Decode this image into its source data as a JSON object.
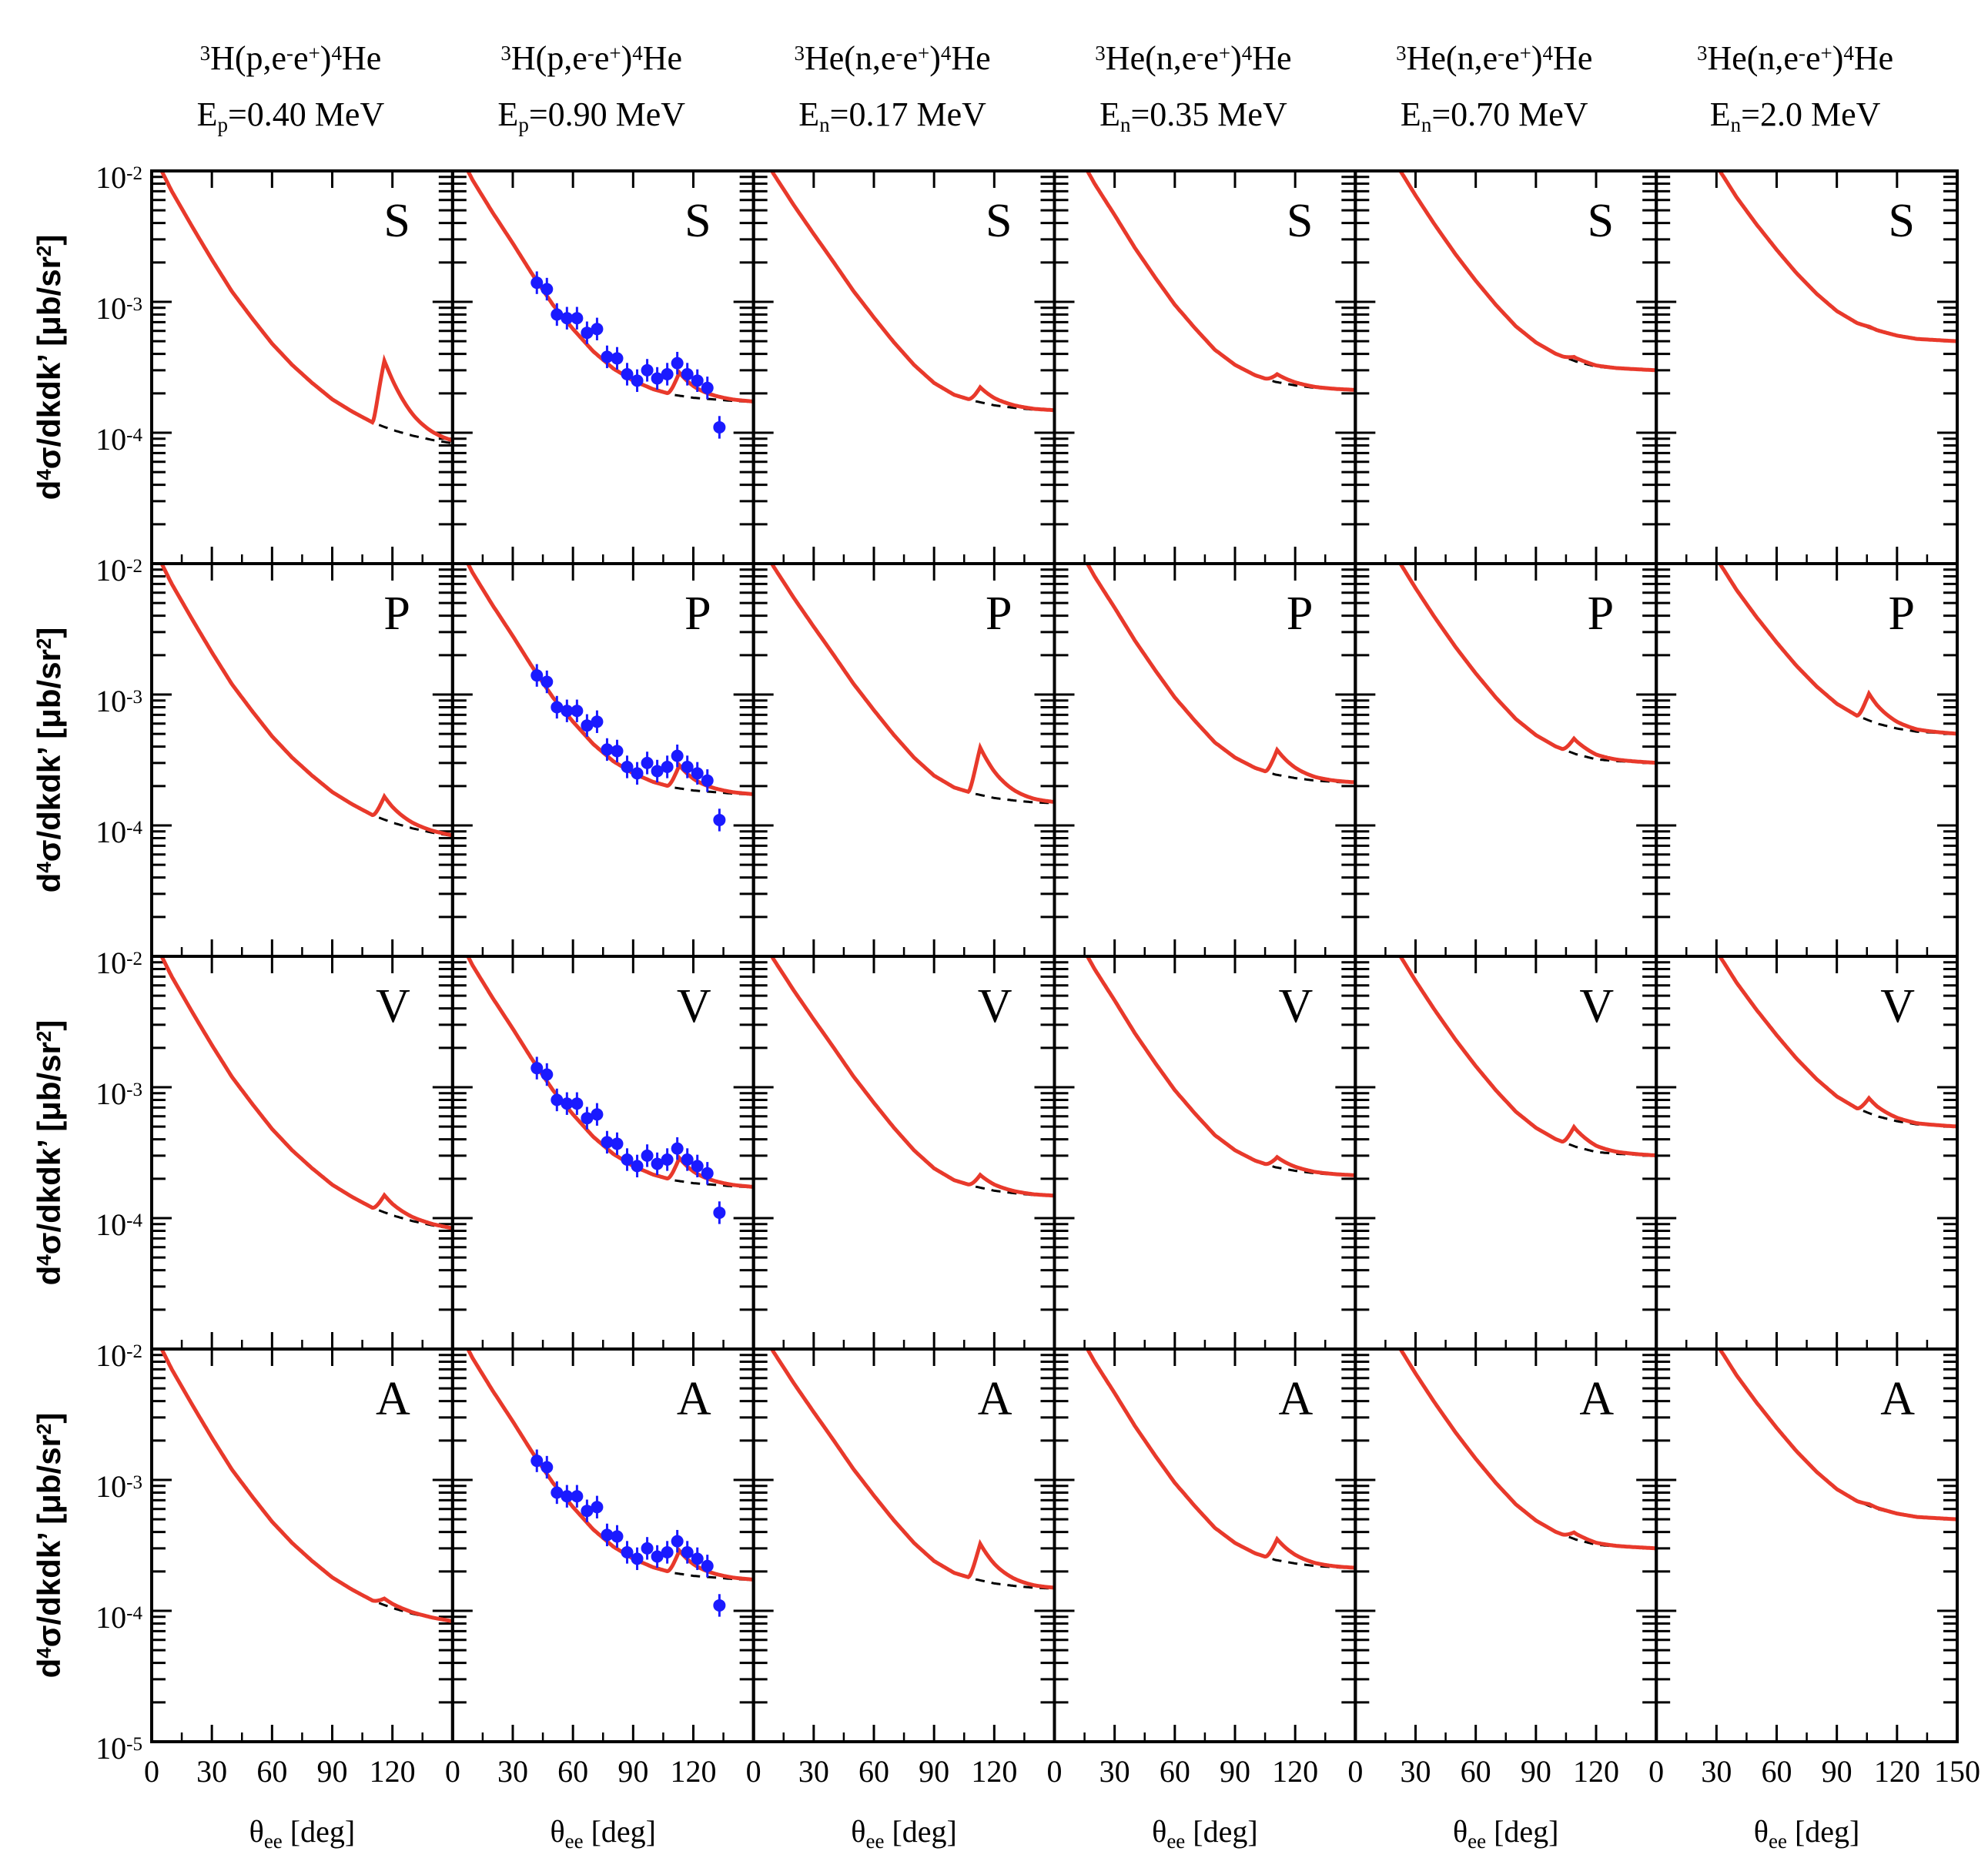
{
  "chart_data": {
    "type": "line",
    "layout": {
      "rows": 4,
      "columns": 6,
      "shared_axes": true
    },
    "xlabel": "θee [deg]",
    "ylabel": "d4σ/dkdk’ [μb/sr2]",
    "xlim": [
      0,
      150
    ],
    "ylim": [
      1e-05,
      0.01
    ],
    "y_scale": "log",
    "xticks": [
      "0",
      "30",
      "60",
      "90",
      "120",
      "150"
    ],
    "yticks": [
      "10-5",
      "10-4",
      "10-3",
      "10-2"
    ],
    "grid": false,
    "colors": {
      "full": "#e8392b",
      "reference": "#000000",
      "data": "#1a1aff"
    },
    "columns": [
      {
        "title": "3H(p,e-e+)4He",
        "energy": "Ep=0.40 MeV"
      },
      {
        "title": "3H(p,e-e+)4He",
        "energy": "Ep=0.90 MeV"
      },
      {
        "title": "3He(n,e-e+)4He",
        "energy": "En=0.17 MeV"
      },
      {
        "title": "3He(n,e-e+)4He",
        "energy": "En=0.35 MeV"
      },
      {
        "title": "3He(n,e-e+)4He",
        "energy": "En=0.70 MeV"
      },
      {
        "title": "3He(n,e-e+)4He",
        "energy": "En=2.0 MeV"
      }
    ],
    "rows": [
      "S",
      "P",
      "V",
      "A"
    ],
    "x": [
      5,
      10,
      20,
      30,
      40,
      50,
      60,
      70,
      80,
      90,
      100,
      110,
      120,
      130,
      140,
      150
    ],
    "base_curves": [
      [
        0.01,
        0.007,
        0.0038,
        0.0021,
        0.0012,
        0.00075,
        0.00048,
        0.00033,
        0.00024,
        0.00018,
        0.000145,
        0.00012,
        0.000105,
        9.5e-05,
        8.8e-05,
        8.3e-05
      ],
      [
        0.012,
        0.0085,
        0.0048,
        0.0028,
        0.0016,
        0.00095,
        0.00062,
        0.00042,
        0.00031,
        0.00025,
        0.000215,
        0.000195,
        0.000185,
        0.00018,
        0.000175,
        0.000172
      ],
      [
        0.013,
        0.0095,
        0.0055,
        0.0033,
        0.002,
        0.0012,
        0.00076,
        0.00049,
        0.00033,
        0.00024,
        0.000195,
        0.000175,
        0.000162,
        0.000155,
        0.00015,
        0.000148
      ],
      [
        0.022,
        0.015,
        0.008,
        0.0046,
        0.0026,
        0.00155,
        0.00095,
        0.00063,
        0.00043,
        0.00033,
        0.000275,
        0.000245,
        0.00023,
        0.00022,
        0.000215,
        0.000212
      ],
      [
        0.03,
        0.021,
        0.0115,
        0.0065,
        0.0038,
        0.0023,
        0.00145,
        0.00095,
        0.00065,
        0.00049,
        0.0004,
        0.00035,
        0.00032,
        0.00031,
        0.000305,
        0.0003
      ],
      [
        0.05,
        0.034,
        0.019,
        0.011,
        0.0063,
        0.0039,
        0.0025,
        0.00165,
        0.00115,
        0.00085,
        0.00069,
        0.0006,
        0.00055,
        0.00052,
        0.00051,
        0.0005
      ]
    ],
    "resonance": {
      "peak_deg": [
        116,
        113,
        113,
        111,
        109,
        106
      ],
      "S": [
        3.2,
        1.5,
        1.3,
        1.15,
        1.07,
        1.02
      ],
      "P": [
        1.5,
        1.5,
        2.3,
        1.55,
        1.3,
        1.6
      ],
      "V": [
        1.35,
        1.5,
        1.25,
        1.2,
        1.4,
        1.3
      ],
      "A": [
        1.12,
        1.5,
        1.9,
        1.45,
        1.12,
        1.03
      ]
    },
    "data_points": {
      "column": "Ep=0.90 MeV",
      "x": [
        42,
        47,
        52,
        57,
        62,
        67,
        72,
        77,
        82,
        87,
        92,
        97,
        102,
        107,
        112,
        117,
        122,
        127,
        133
      ],
      "y": [
        0.0014,
        0.00125,
        0.0008,
        0.00075,
        0.00075,
        0.00058,
        0.00062,
        0.00038,
        0.00037,
        0.00028,
        0.00025,
        0.0003,
        0.00026,
        0.00028,
        0.00034,
        0.00028,
        0.00025,
        0.00022,
        0.00011
      ]
    }
  }
}
